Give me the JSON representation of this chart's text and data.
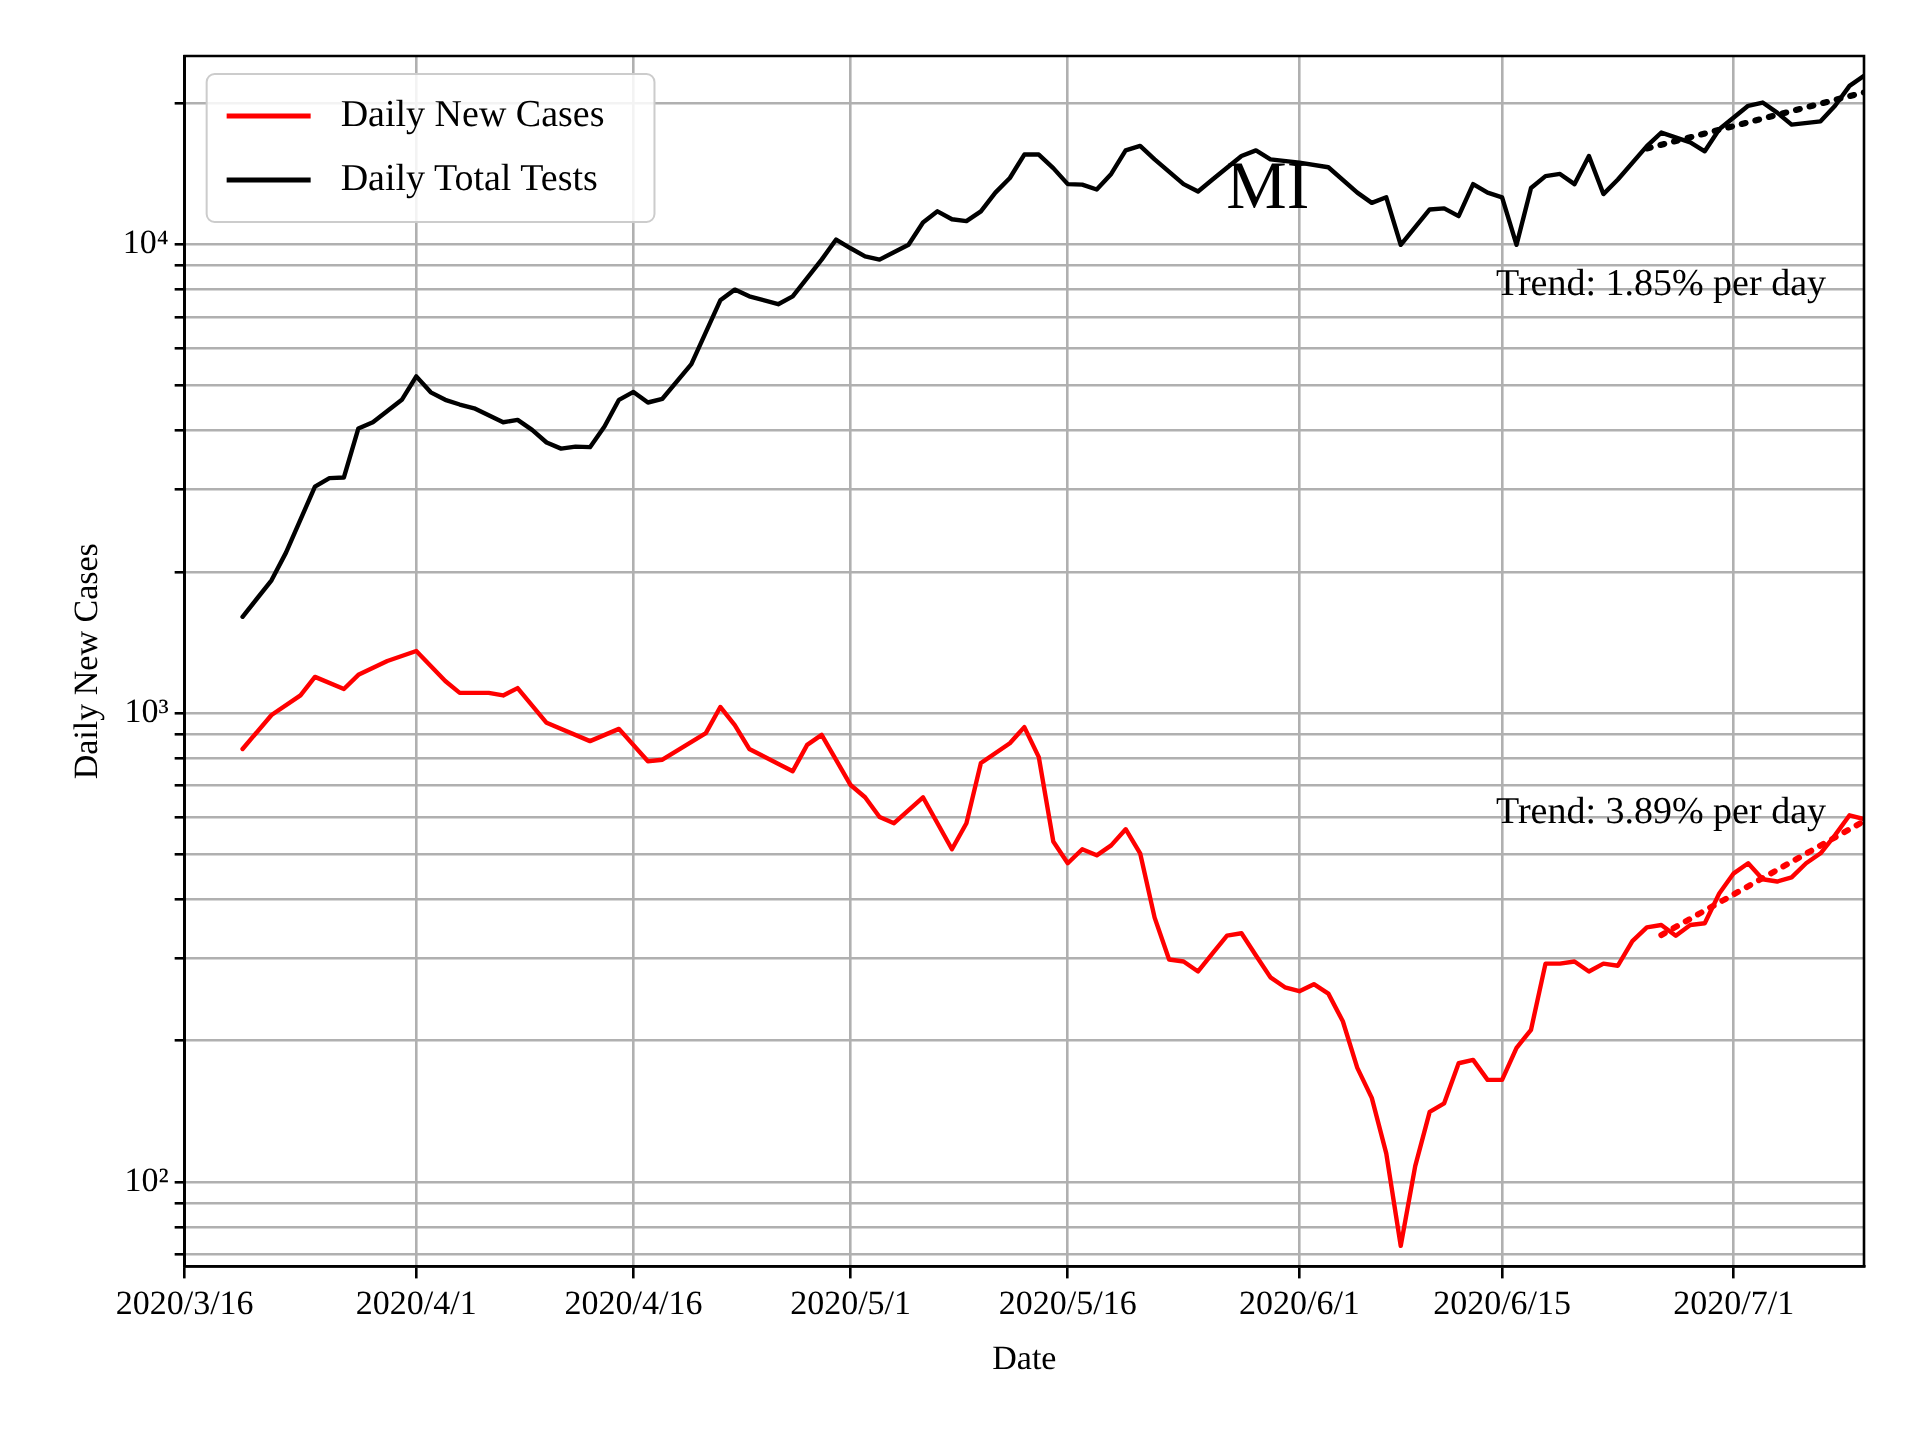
{
  "chart_data": {
    "type": "line",
    "title": "MI",
    "xlabel": "Date",
    "ylabel": "Daily New Cases",
    "log": "y",
    "grid": true,
    "legend": "top left",
    "xlim": [
      "2020-03-16",
      "2020-07-10"
    ],
    "xticks": [
      {
        "value": "2020-03-16",
        "label": "2020/3/16"
      },
      {
        "value": "2020-04-01",
        "label": "2020/4/1"
      },
      {
        "value": "2020-04-16",
        "label": "2020/4/16"
      },
      {
        "value": "2020-05-01",
        "label": "2020/5/1"
      },
      {
        "value": "2020-05-16",
        "label": "2020/5/16"
      },
      {
        "value": "2020-06-01",
        "label": "2020/6/1"
      },
      {
        "value": "2020-06-15",
        "label": "2020/6/15"
      },
      {
        "value": "2020-07-01",
        "label": "2020/7/1"
      }
    ],
    "ylim": [
      66,
      25200
    ],
    "yticks": [
      {
        "value": 70,
        "label": null
      },
      {
        "value": 80,
        "label": null
      },
      {
        "value": 90,
        "label": null
      },
      {
        "value": 100,
        "label": "10²"
      },
      {
        "value": 200,
        "label": null
      },
      {
        "value": 300,
        "label": null
      },
      {
        "value": 400,
        "label": null
      },
      {
        "value": 500,
        "label": null
      },
      {
        "value": 600,
        "label": null
      },
      {
        "value": 700,
        "label": null
      },
      {
        "value": 800,
        "label": null
      },
      {
        "value": 900,
        "label": null
      },
      {
        "value": 1000,
        "label": "10³"
      },
      {
        "value": 2000,
        "label": null
      },
      {
        "value": 3000,
        "label": null
      },
      {
        "value": 4000,
        "label": null
      },
      {
        "value": 5000,
        "label": null
      },
      {
        "value": 6000,
        "label": null
      },
      {
        "value": 7000,
        "label": null
      },
      {
        "value": 8000,
        "label": null
      },
      {
        "value": 9000,
        "label": null
      },
      {
        "value": 10000,
        "label": "10⁴"
      },
      {
        "value": 20000,
        "label": null
      }
    ],
    "series": [
      {
        "name": "Daily New Cases",
        "color": "#ff0000",
        "x": [
          "2020-03-20",
          "2020-03-22",
          "2020-03-24",
          "2020-03-25",
          "2020-03-27",
          "2020-03-28",
          "2020-03-30",
          "2020-04-01",
          "2020-04-03",
          "2020-04-04",
          "2020-04-06",
          "2020-04-07",
          "2020-04-08",
          "2020-04-10",
          "2020-04-13",
          "2020-04-15",
          "2020-04-17",
          "2020-04-18",
          "2020-04-21",
          "2020-04-22",
          "2020-04-23",
          "2020-04-24",
          "2020-04-27",
          "2020-04-28",
          "2020-04-29",
          "2020-05-01",
          "2020-05-02",
          "2020-05-03",
          "2020-05-04",
          "2020-05-06",
          "2020-05-08",
          "2020-05-09",
          "2020-05-10",
          "2020-05-12",
          "2020-05-13",
          "2020-05-14",
          "2020-05-15",
          "2020-05-16",
          "2020-05-17",
          "2020-05-18",
          "2020-05-19",
          "2020-05-20",
          "2020-05-21",
          "2020-05-22",
          "2020-05-23",
          "2020-05-24",
          "2020-05-25",
          "2020-05-26",
          "2020-05-27",
          "2020-05-28",
          "2020-05-29",
          "2020-05-30",
          "2020-05-31",
          "2020-06-01",
          "2020-06-02",
          "2020-06-03",
          "2020-06-04",
          "2020-06-05",
          "2020-06-06",
          "2020-06-07",
          "2020-06-08",
          "2020-06-09",
          "2020-06-10",
          "2020-06-11",
          "2020-06-12",
          "2020-06-13",
          "2020-06-14",
          "2020-06-15",
          "2020-06-16",
          "2020-06-17",
          "2020-06-18",
          "2020-06-19",
          "2020-06-20",
          "2020-06-21",
          "2020-06-22",
          "2020-06-23",
          "2020-06-24",
          "2020-06-25",
          "2020-06-26",
          "2020-06-27",
          "2020-06-28",
          "2020-06-29",
          "2020-06-30",
          "2020-07-01",
          "2020-07-02",
          "2020-07-03",
          "2020-07-04",
          "2020-07-05",
          "2020-07-06",
          "2020-07-07",
          "2020-07-08",
          "2020-07-09",
          "2020-07-10"
        ],
        "values": [
          838,
          990,
          1090,
          1194,
          1125,
          1206,
          1291,
          1356,
          1170,
          1104,
          1104,
          1090,
          1130,
          953,
          871,
          925,
          789,
          795,
          906,
          1030,
          942,
          838,
          751,
          855,
          898,
          702,
          661,
          600,
          582,
          661,
          512,
          582,
          782,
          862,
          933,
          805,
          532,
          478,
          512,
          497,
          522,
          565,
          502,
          366,
          298,
          295,
          281,
          307,
          335,
          339,
          304,
          273,
          260,
          255,
          264,
          252,
          220,
          175,
          151,
          115,
          73,
          108,
          141,
          147,
          179,
          182,
          165,
          165,
          193,
          211,
          292,
          292,
          295,
          281,
          292,
          289,
          326,
          349,
          353,
          335,
          353,
          356,
          412,
          455,
          478,
          442,
          437,
          446,
          478,
          502,
          549,
          605,
          594
        ]
      },
      {
        "name": "Daily Total Tests",
        "color": "#000000",
        "x": [
          "2020-03-20",
          "2020-03-22",
          "2020-03-23",
          "2020-03-25",
          "2020-03-26",
          "2020-03-27",
          "2020-03-28",
          "2020-03-29",
          "2020-03-31",
          "2020-04-01",
          "2020-04-02",
          "2020-04-03",
          "2020-04-04",
          "2020-04-05",
          "2020-04-07",
          "2020-04-08",
          "2020-04-09",
          "2020-04-10",
          "2020-04-11",
          "2020-04-12",
          "2020-04-13",
          "2020-04-14",
          "2020-04-15",
          "2020-04-16",
          "2020-04-17",
          "2020-04-18",
          "2020-04-20",
          "2020-04-22",
          "2020-04-23",
          "2020-04-24",
          "2020-04-26",
          "2020-04-27",
          "2020-04-29",
          "2020-04-30",
          "2020-05-01",
          "2020-05-02",
          "2020-05-03",
          "2020-05-05",
          "2020-05-06",
          "2020-05-07",
          "2020-05-08",
          "2020-05-09",
          "2020-05-10",
          "2020-05-11",
          "2020-05-12",
          "2020-05-13",
          "2020-05-14",
          "2020-05-15",
          "2020-05-16",
          "2020-05-17",
          "2020-05-18",
          "2020-05-19",
          "2020-05-20",
          "2020-05-21",
          "2020-05-22",
          "2020-05-24",
          "2020-05-25",
          "2020-05-26",
          "2020-05-28",
          "2020-05-29",
          "2020-05-30",
          "2020-06-01",
          "2020-06-03",
          "2020-06-05",
          "2020-06-06",
          "2020-06-07",
          "2020-06-08",
          "2020-06-10",
          "2020-06-11",
          "2020-06-12",
          "2020-06-13",
          "2020-06-14",
          "2020-06-15",
          "2020-06-16",
          "2020-06-17",
          "2020-06-18",
          "2020-06-19",
          "2020-06-20",
          "2020-06-21",
          "2020-06-22",
          "2020-06-23",
          "2020-06-25",
          "2020-06-26",
          "2020-06-28",
          "2020-06-29",
          "2020-06-30",
          "2020-07-02",
          "2020-07-03",
          "2020-07-04",
          "2020-07-05",
          "2020-07-07",
          "2020-07-08",
          "2020-07-09",
          "2020-07-10"
        ],
        "values": [
          1604,
          1919,
          2198,
          3040,
          3170,
          3180,
          4045,
          4170,
          4656,
          5224,
          4830,
          4656,
          4550,
          4467,
          4170,
          4220,
          4018,
          3776,
          3664,
          3700,
          3690,
          4083,
          4656,
          4840,
          4595,
          4680,
          5546,
          7590,
          8000,
          7740,
          7447,
          7740,
          9270,
          10230,
          9800,
          9420,
          9270,
          9970,
          11120,
          11750,
          11300,
          11200,
          11750,
          12880,
          13840,
          15530,
          15530,
          14530,
          13430,
          13400,
          13080,
          14120,
          15850,
          16200,
          15170,
          13430,
          12950,
          13740,
          15420,
          15850,
          15170,
          14930,
          14590,
          12880,
          12250,
          12590,
          9970,
          11860,
          11920,
          11480,
          13430,
          12880,
          12590,
          9970,
          13180,
          13970,
          14120,
          13430,
          15420,
          12790,
          13740,
          16190,
          17300,
          16490,
          15780,
          17580,
          19730,
          20050,
          19080,
          17990,
          18280,
          19730,
          21760,
          22860
        ]
      },
      {
        "color": "#ff0000",
        "line_style": "dotted",
        "x": [
          "2020-06-26",
          "2020-07-10"
        ],
        "values": [
          336,
          588
        ]
      },
      {
        "color": "#000000",
        "line_style": "dotted",
        "x": [
          "2020-06-25",
          "2020-07-10"
        ],
        "values": [
          16000,
          21070
        ]
      }
    ],
    "annotations": [
      "Trend: 1.85% per day",
      "Trend: 3.89% per day"
    ]
  }
}
